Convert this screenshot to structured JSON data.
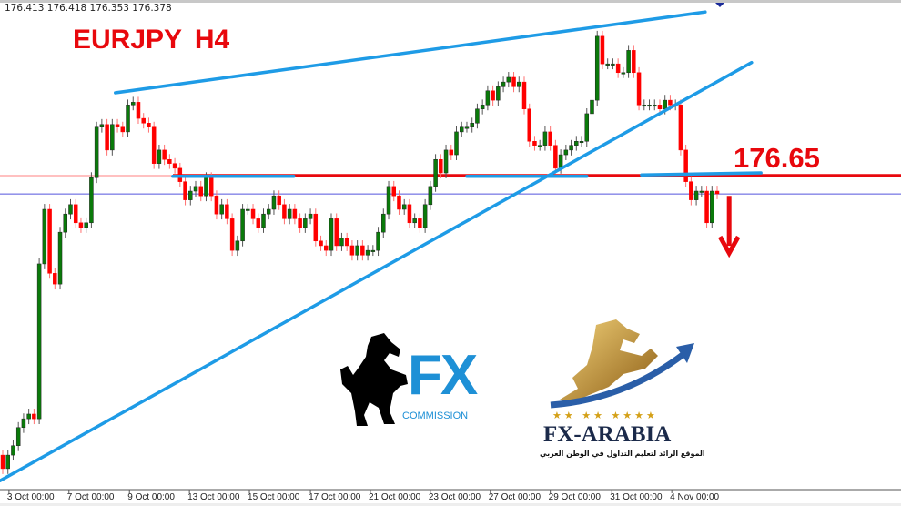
{
  "header": {
    "ohlc_readout": "176.413 176.418 176.353 176.378",
    "title": "EURJPY  H4",
    "level_label": "176.65"
  },
  "colors": {
    "bull": "#0a7a0a",
    "bear": "#ff0000",
    "trendline": "#1e9be6",
    "level": "#e8080d",
    "bid_line": "#5555dd"
  },
  "chart_data": {
    "type": "candlestick",
    "symbol": "EURJPY",
    "timeframe": "H4",
    "ylim": [
      172.1,
      179.26
    ],
    "grid": false,
    "last_bar": {
      "open": 176.413,
      "high": 176.418,
      "low": 176.353,
      "close": 176.378
    },
    "closes": [
      172.3,
      172.5,
      172.64,
      172.91,
      173.04,
      173.11,
      173.04,
      175.34,
      176.15,
      175.2,
      175.04,
      175.81,
      176.08,
      176.22,
      175.95,
      175.88,
      175.95,
      176.62,
      177.37,
      177.41,
      177.03,
      177.41,
      177.37,
      177.3,
      177.7,
      177.74,
      177.5,
      177.43,
      177.37,
      176.83,
      177.03,
      176.89,
      176.83,
      176.76,
      176.56,
      176.29,
      176.42,
      176.49,
      176.35,
      176.62,
      176.35,
      176.08,
      176.22,
      176.01,
      175.54,
      175.68,
      176.15,
      176.15,
      176.01,
      175.88,
      176.08,
      176.15,
      176.35,
      176.22,
      176.01,
      176.15,
      176.01,
      175.88,
      176.01,
      176.08,
      175.68,
      175.61,
      175.54,
      176.01,
      175.61,
      175.72,
      175.61,
      175.47,
      175.61,
      175.47,
      175.54,
      175.54,
      175.81,
      176.08,
      176.49,
      176.35,
      176.15,
      176.22,
      175.95,
      176.01,
      175.88,
      176.22,
      176.49,
      176.89,
      176.69,
      177.03,
      176.96,
      177.3,
      177.37,
      177.37,
      177.43,
      177.64,
      177.7,
      177.91,
      177.77,
      177.97,
      178.04,
      178.11,
      177.97,
      178.04,
      177.64,
      177.16,
      177.1,
      177.1,
      177.3,
      177.1,
      176.76,
      176.96,
      177.03,
      177.1,
      177.16,
      177.16,
      177.57,
      177.77,
      178.72,
      178.31,
      178.31,
      178.31,
      178.18,
      178.18,
      178.51,
      178.18,
      177.7,
      177.7,
      177.7,
      177.7,
      177.64,
      177.77,
      177.7,
      177.7,
      177.03,
      176.56,
      176.29,
      176.42,
      176.42,
      175.95,
      176.42,
      176.38
    ],
    "x_ticks": [
      {
        "label": "3 Oct 00:00",
        "bar": 2.2
      },
      {
        "label": "7 Oct 00:00",
        "bar": 13.7
      },
      {
        "label": "9 Oct 00:00",
        "bar": 25.3
      },
      {
        "label": "13 Oct 00:00",
        "bar": 36.8
      },
      {
        "label": "15 Oct 00:00",
        "bar": 48.3
      },
      {
        "label": "17 Oct 00:00",
        "bar": 60.0
      },
      {
        "label": "21 Oct 00:00",
        "bar": 71.5
      },
      {
        "label": "23 Oct 00:00",
        "bar": 83.0
      },
      {
        "label": "27 Oct 00:00",
        "bar": 94.5
      },
      {
        "label": "29 Oct 00:00",
        "bar": 106.0
      },
      {
        "label": "31 Oct 00:00",
        "bar": 117.8
      },
      {
        "label": "4 Nov 00:00",
        "bar": 129.3
      }
    ],
    "horizontal_levels": [
      {
        "price": 176.65,
        "role": "resistance",
        "color": "#e8080d"
      },
      {
        "price": 176.378,
        "role": "bid",
        "color": "#5555dd"
      }
    ],
    "trendlines": [
      {
        "from": {
          "bar": 22.6,
          "price": 177.88
        },
        "to": {
          "bar": 135.7,
          "price": 179.08
        }
      },
      {
        "from": {
          "bar": 0.5,
          "price": 172.12
        },
        "to": {
          "bar": 144.6,
          "price": 178.33
        }
      },
      {
        "from": {
          "bar": 33.6,
          "price": 176.64
        },
        "to": {
          "bar": 56.8,
          "price": 176.64
        }
      },
      {
        "from": {
          "bar": 90.0,
          "price": 176.64
        },
        "to": {
          "bar": 113.0,
          "price": 176.64
        }
      },
      {
        "from": {
          "bar": 123.5,
          "price": 176.66
        },
        "to": {
          "bar": 146.4,
          "price": 176.69
        }
      }
    ],
    "arrow": {
      "direction": "down",
      "bar": 140.3,
      "from_price": 176.35,
      "to_price": 175.5
    }
  },
  "logos": {
    "fx_commission": {
      "mark": "FX",
      "text": "COMMISSION"
    },
    "fx_arabia": {
      "stars": "★★ ★★ ★★★★",
      "name": "FX-ARABIA",
      "tagline": "الموقع الرائد لتعليم التداول في الوطن العربي"
    }
  }
}
